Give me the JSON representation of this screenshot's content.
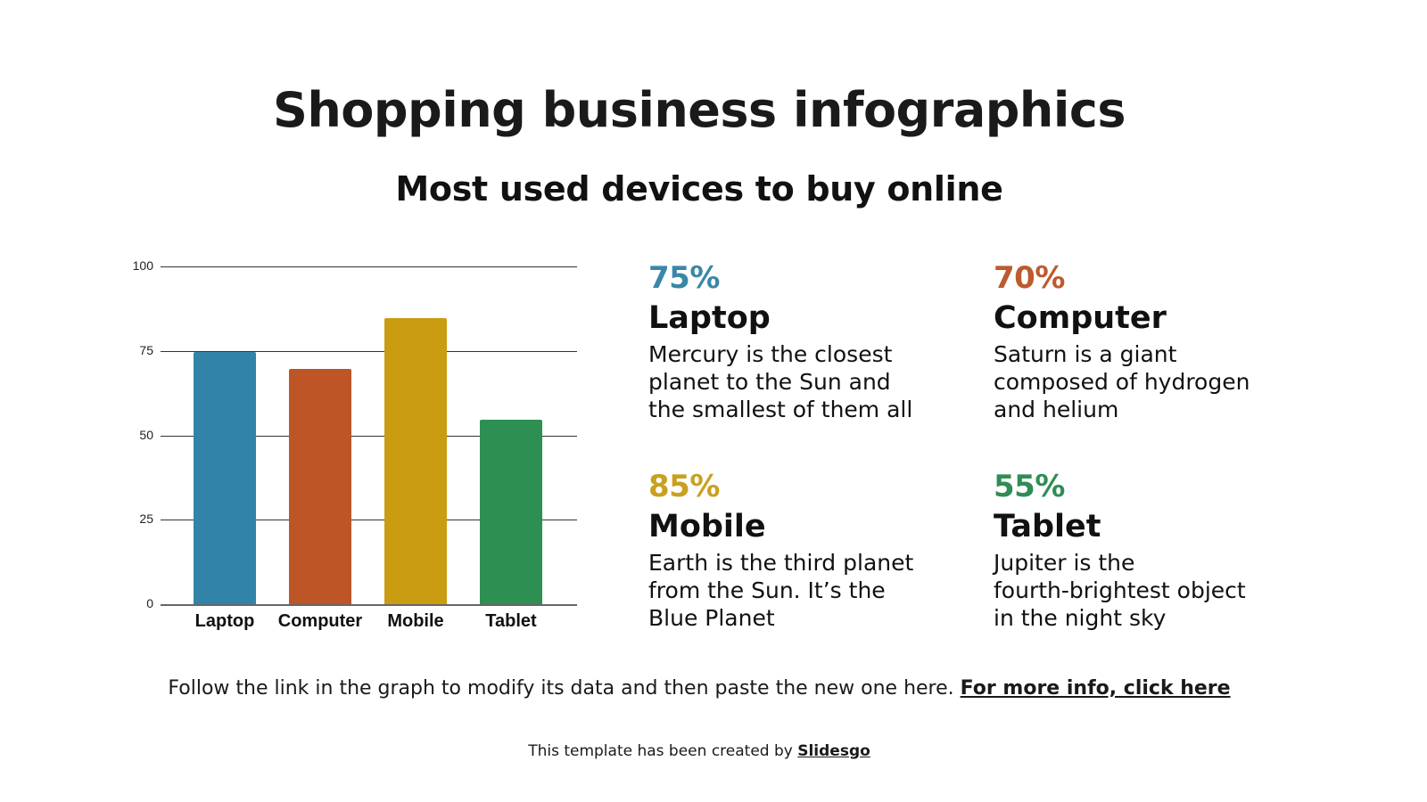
{
  "slide": {
    "title": "Shopping business infographics",
    "subtitle": "Most used devices to buy online"
  },
  "chart_data": {
    "type": "bar",
    "title": "",
    "xlabel": "",
    "ylabel": "",
    "categories": [
      "Laptop",
      "Computer",
      "Mobile",
      "Tablet"
    ],
    "values": [
      75,
      70,
      85,
      55
    ],
    "colors": [
      "#3184a8",
      "#bd5527",
      "#c99c11",
      "#2e8f53"
    ],
    "yticks": [
      0,
      25,
      50,
      75,
      100
    ],
    "ylim": [
      0,
      100
    ],
    "grid": true,
    "legend": "none"
  },
  "cards": [
    {
      "percent": "75%",
      "name": "Laptop",
      "color": "#3a87a7",
      "desc_lines": [
        "Mercury is the closest",
        "planet to the Sun and",
        "the smallest of them all"
      ]
    },
    {
      "percent": "70%",
      "name": "Computer",
      "color": "#bd5a2e",
      "desc_lines": [
        "Saturn is a giant",
        "composed of hydrogen",
        "and helium"
      ]
    },
    {
      "percent": "85%",
      "name": "Mobile",
      "color": "#c9a020",
      "desc_lines": [
        "Earth is the third planet",
        "from the Sun. It’s the",
        "Blue Planet"
      ]
    },
    {
      "percent": "55%",
      "name": "Tablet",
      "color": "#2f8d55",
      "desc_lines": [
        "Jupiter is the",
        "fourth-brightest object",
        "in the night sky"
      ]
    }
  ],
  "footer": {
    "note": "Follow the link in the graph to modify its data and then paste the new one here.",
    "link": "For more info, click here",
    "credit": "This template has been created by",
    "credit_link": "Slidesgo"
  }
}
